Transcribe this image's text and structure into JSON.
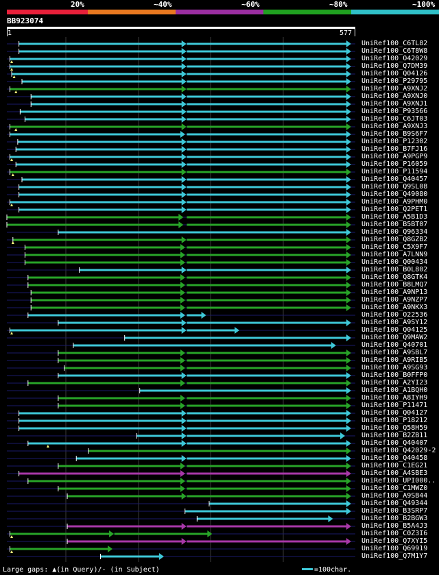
{
  "scale": {
    "labels": [
      "20%",
      "~40%",
      "~60%",
      "~80%",
      "~100%"
    ],
    "colors": [
      "#e8203a",
      "#e87820",
      "#9a2ea0",
      "#20a020",
      "#30c0c8"
    ]
  },
  "query": {
    "name": "BB923074",
    "start": "1",
    "end": "577",
    "length": 577
  },
  "colors": {
    "cyan": "#3ec8d8",
    "green": "#28a428",
    "purple": "#a838a8",
    "navy": "#1a1a6a",
    "grid": "#3a3a3a"
  },
  "legend": {
    "gaps": "Large gaps: ▲(in Query)/- (in Subject)",
    "scale": "=100char."
  },
  "hits": [
    {
      "name": "UniRef100_C6TL82",
      "color": "cyan",
      "segs": [
        [
          20,
          295
        ],
        [
          298,
          570
        ]
      ],
      "start": 20
    },
    {
      "name": "UniRef100_C6T8W8",
      "color": "cyan",
      "segs": [
        [
          20,
          295
        ],
        [
          298,
          570
        ]
      ],
      "start": 20
    },
    {
      "name": "UniRef100_O42029",
      "color": "cyan",
      "segs": [
        [
          5,
          295
        ],
        [
          298,
          570
        ]
      ],
      "start": 5,
      "mark": 8
    },
    {
      "name": "UniRef100_Q7DM39",
      "color": "cyan",
      "segs": [
        [
          5,
          295
        ],
        [
          298,
          570
        ]
      ],
      "start": 5,
      "mark": 8
    },
    {
      "name": "UniRef100_Q04126",
      "color": "cyan",
      "segs": [
        [
          8,
          295
        ],
        [
          298,
          570
        ]
      ],
      "start": 8,
      "mark": 12
    },
    {
      "name": "UniRef100_P29795",
      "color": "cyan",
      "segs": [
        [
          25,
          295
        ],
        [
          298,
          570
        ]
      ],
      "start": 25
    },
    {
      "name": "UniRef100_A9XNJ2",
      "color": "green",
      "segs": [
        [
          5,
          295
        ],
        [
          298,
          570
        ]
      ],
      "start": 5,
      "mark": 15
    },
    {
      "name": "UniRef100_A9XNJ0",
      "color": "cyan",
      "segs": [
        [
          40,
          295
        ],
        [
          298,
          570
        ]
      ],
      "start": 40
    },
    {
      "name": "UniRef100_A9XNJ1",
      "color": "cyan",
      "segs": [
        [
          40,
          295
        ],
        [
          298,
          570
        ]
      ],
      "start": 40
    },
    {
      "name": "UniRef100_P93566",
      "color": "cyan",
      "segs": [
        [
          22,
          295
        ],
        [
          298,
          570
        ]
      ],
      "start": 22
    },
    {
      "name": "UniRef100_C6JT03",
      "color": "cyan",
      "segs": [
        [
          30,
          295
        ],
        [
          298,
          570
        ]
      ],
      "start": 30
    },
    {
      "name": "UniRef100_A9XNJ3",
      "color": "green",
      "segs": [
        [
          5,
          295
        ],
        [
          298,
          570
        ]
      ],
      "start": 5,
      "mark": 15
    },
    {
      "name": "UniRef100_B9S6F7",
      "color": "cyan",
      "segs": [
        [
          5,
          293
        ],
        [
          298,
          570
        ]
      ],
      "start": 5
    },
    {
      "name": "UniRef100_P12302",
      "color": "cyan",
      "segs": [
        [
          18,
          295
        ],
        [
          298,
          570
        ]
      ],
      "start": 18
    },
    {
      "name": "UniRef100_B7FJ16",
      "color": "cyan",
      "segs": [
        [
          15,
          295
        ],
        [
          298,
          570
        ]
      ],
      "start": 15
    },
    {
      "name": "UniRef100_A9PGP9",
      "color": "cyan",
      "segs": [
        [
          5,
          295
        ],
        [
          298,
          570
        ]
      ],
      "start": 5,
      "mark": 8
    },
    {
      "name": "UniRef100_P16059",
      "color": "cyan",
      "segs": [
        [
          15,
          295
        ],
        [
          298,
          570
        ]
      ],
      "start": 15
    },
    {
      "name": "UniRef100_P11594",
      "color": "green",
      "segs": [
        [
          5,
          295
        ],
        [
          298,
          570
        ]
      ],
      "start": 5,
      "mark": 10
    },
    {
      "name": "UniRef100_Q40457",
      "color": "cyan",
      "segs": [
        [
          25,
          295
        ],
        [
          298,
          570
        ]
      ],
      "start": 25
    },
    {
      "name": "UniRef100_Q9SL08",
      "color": "cyan",
      "segs": [
        [
          20,
          295
        ],
        [
          298,
          570
        ]
      ],
      "start": 20
    },
    {
      "name": "UniRef100_Q49080",
      "color": "cyan",
      "segs": [
        [
          20,
          295
        ],
        [
          298,
          570
        ]
      ],
      "start": 20
    },
    {
      "name": "UniRef100_A9PHM0",
      "color": "cyan",
      "segs": [
        [
          5,
          295
        ],
        [
          298,
          570
        ]
      ],
      "start": 5,
      "mark": 8
    },
    {
      "name": "UniRef100_Q2PET1",
      "color": "cyan",
      "segs": [
        [
          20,
          295
        ],
        [
          298,
          570
        ]
      ],
      "start": 20
    },
    {
      "name": "UniRef100_A5B1D3",
      "color": "green",
      "segs": [
        [
          0,
          290
        ],
        [
          298,
          570
        ]
      ],
      "start": 0
    },
    {
      "name": "UniRef100_B5BT07",
      "color": "green",
      "segs": [
        [
          0,
          290
        ],
        [
          298,
          570
        ]
      ],
      "start": 0
    },
    {
      "name": "UniRef100_Q96334",
      "color": "cyan",
      "segs": [
        [
          85,
          570
        ]
      ],
      "start": 85
    },
    {
      "name": "UniRef100_Q8GZB2",
      "color": "green",
      "segs": [
        [
          10,
          295
        ],
        [
          298,
          570
        ]
      ],
      "start": 10,
      "mark": 10
    },
    {
      "name": "UniRef100_C5X9F7",
      "color": "green",
      "segs": [
        [
          30,
          293
        ],
        [
          298,
          570
        ]
      ],
      "start": 30
    },
    {
      "name": "UniRef100_A7LNN9",
      "color": "green",
      "segs": [
        [
          30,
          293
        ],
        [
          298,
          570
        ]
      ],
      "start": 30
    },
    {
      "name": "UniRef100_Q00434",
      "color": "green",
      "segs": [
        [
          30,
          293
        ],
        [
          298,
          570
        ]
      ],
      "start": 30
    },
    {
      "name": "UniRef100_B0L802",
      "color": "cyan",
      "segs": [
        [
          120,
          295
        ],
        [
          298,
          570
        ]
      ],
      "start": 120
    },
    {
      "name": "UniRef100_Q8GTK4",
      "color": "green",
      "segs": [
        [
          35,
          293
        ],
        [
          298,
          570
        ]
      ],
      "start": 35
    },
    {
      "name": "UniRef100_B8LMQ7",
      "color": "green",
      "segs": [
        [
          35,
          293
        ],
        [
          298,
          570
        ]
      ],
      "start": 35
    },
    {
      "name": "UniRef100_A9NP13",
      "color": "green",
      "segs": [
        [
          40,
          293
        ],
        [
          298,
          570
        ]
      ],
      "start": 40
    },
    {
      "name": "UniRef100_A9NZP7",
      "color": "green",
      "segs": [
        [
          40,
          293
        ],
        [
          298,
          570
        ]
      ],
      "start": 40
    },
    {
      "name": "UniRef100_A9NKX3",
      "color": "green",
      "segs": [
        [
          40,
          293
        ],
        [
          298,
          570
        ]
      ],
      "start": 40
    },
    {
      "name": "UniRef100_O22536",
      "color": "cyan",
      "segs": [
        [
          35,
          293
        ],
        [
          298,
          330
        ]
      ],
      "start": 35
    },
    {
      "name": "UniRef100_A9SY12",
      "color": "cyan",
      "segs": [
        [
          85,
          295
        ],
        [
          298,
          570
        ]
      ],
      "start": 85
    },
    {
      "name": "UniRef100_Q04125",
      "color": "cyan",
      "segs": [
        [
          5,
          295
        ],
        [
          298,
          385
        ]
      ],
      "start": 5,
      "mark": 8
    },
    {
      "name": "UniRef100_Q9MAW2",
      "color": "cyan",
      "segs": [
        [
          195,
          570
        ]
      ],
      "start": 195
    },
    {
      "name": "UniRef100_Q40701",
      "color": "cyan",
      "segs": [
        [
          110,
          545
        ]
      ],
      "start": 110
    },
    {
      "name": "UniRef100_A9SBL7",
      "color": "green",
      "segs": [
        [
          85,
          293
        ],
        [
          298,
          570
        ]
      ],
      "start": 85
    },
    {
      "name": "UniRef100_A9RIB5",
      "color": "green",
      "segs": [
        [
          85,
          293
        ],
        [
          298,
          570
        ]
      ],
      "start": 85
    },
    {
      "name": "UniRef100_A9SG93",
      "color": "green",
      "segs": [
        [
          95,
          293
        ],
        [
          298,
          570
        ]
      ],
      "start": 95
    },
    {
      "name": "UniRef100_B0FFP0",
      "color": "cyan",
      "segs": [
        [
          85,
          295
        ],
        [
          298,
          570
        ]
      ],
      "start": 85
    },
    {
      "name": "UniRef100_A2YI23",
      "color": "green",
      "segs": [
        [
          35,
          293
        ],
        [
          298,
          570
        ]
      ],
      "start": 35
    },
    {
      "name": "UniRef100_A1BQH0",
      "color": "cyan",
      "segs": [
        [
          220,
          570
        ]
      ],
      "start": 220
    },
    {
      "name": "UniRef100_A8IYH9",
      "color": "green",
      "segs": [
        [
          85,
          293
        ],
        [
          298,
          570
        ]
      ],
      "start": 85
    },
    {
      "name": "UniRef100_P11471",
      "color": "green",
      "segs": [
        [
          85,
          293
        ],
        [
          298,
          570
        ]
      ],
      "start": 85
    },
    {
      "name": "UniRef100_Q04127",
      "color": "cyan",
      "segs": [
        [
          20,
          295
        ],
        [
          298,
          570
        ]
      ],
      "start": 20
    },
    {
      "name": "UniRef100_P18212",
      "color": "cyan",
      "segs": [
        [
          20,
          295
        ],
        [
          298,
          570
        ]
      ],
      "start": 20
    },
    {
      "name": "UniRef100_Q58H59",
      "color": "cyan",
      "segs": [
        [
          20,
          295
        ],
        [
          298,
          570
        ]
      ],
      "start": 20
    },
    {
      "name": "UniRef100_B2ZB11",
      "color": "cyan",
      "segs": [
        [
          215,
          295
        ],
        [
          298,
          560
        ]
      ],
      "start": 215
    },
    {
      "name": "UniRef100_Q40407",
      "color": "cyan",
      "segs": [
        [
          35,
          295
        ],
        [
          298,
          570
        ]
      ],
      "start": 35,
      "mark": 68
    },
    {
      "name": "UniRef100_Q42029-2",
      "color": "green",
      "segs": [
        [
          135,
          570
        ]
      ],
      "start": 135
    },
    {
      "name": "UniRef100_Q40458",
      "color": "cyan",
      "segs": [
        [
          115,
          295
        ],
        [
          298,
          570
        ]
      ],
      "start": 115
    },
    {
      "name": "UniRef100_C1EG21",
      "color": "green",
      "segs": [
        [
          85,
          293
        ],
        [
          298,
          570
        ]
      ],
      "start": 85
    },
    {
      "name": "UniRef100_A4SBE3",
      "color": "purple",
      "segs": [
        [
          20,
          293
        ],
        [
          298,
          570
        ]
      ],
      "start": 20
    },
    {
      "name": "UniRef100_UPI000..",
      "color": "green",
      "segs": [
        [
          35,
          293
        ],
        [
          298,
          570
        ]
      ],
      "start": 35
    },
    {
      "name": "UniRef100_C1MWZ0",
      "color": "green",
      "segs": [
        [
          85,
          293
        ],
        [
          298,
          570
        ]
      ],
      "start": 85
    },
    {
      "name": "UniRef100_A9SB44",
      "color": "green",
      "segs": [
        [
          100,
          295
        ],
        [
          298,
          570
        ]
      ],
      "start": 100
    },
    {
      "name": "UniRef100_Q49344",
      "color": "cyan",
      "segs": [
        [
          335,
          570
        ]
      ],
      "start": 335
    },
    {
      "name": "UniRef100_B3SRP7",
      "color": "cyan",
      "segs": [
        [
          295,
          570
        ]
      ],
      "start": 295
    },
    {
      "name": "UniRef100_B2BGW3",
      "color": "cyan",
      "segs": [
        [
          315,
          540
        ]
      ],
      "start": 315
    },
    {
      "name": "UniRef100_B5A4J3",
      "color": "purple",
      "segs": [
        [
          100,
          295
        ],
        [
          298,
          570
        ]
      ],
      "start": 100
    },
    {
      "name": "UniRef100_C0Z3I6",
      "color": "green",
      "segs": [
        [
          5,
          175
        ],
        [
          178,
          340
        ]
      ],
      "start": 5,
      "mark": 8
    },
    {
      "name": "UniRef100_Q7XYI5",
      "color": "purple",
      "segs": [
        [
          100,
          295
        ],
        [
          298,
          570
        ]
      ],
      "start": 100
    },
    {
      "name": "UniRef100_Q69919",
      "color": "green",
      "segs": [
        [
          5,
          175
        ]
      ],
      "start": 5,
      "mark": 8
    },
    {
      "name": "UniRef100_Q7M1Y7",
      "color": "cyan",
      "segs": [
        [
          155,
          260
        ]
      ],
      "start": 155
    }
  ]
}
